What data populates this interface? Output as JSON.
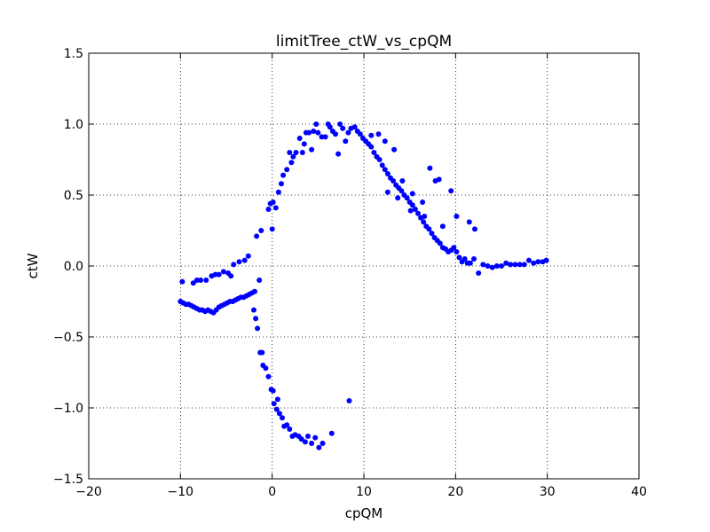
{
  "chart_data": {
    "type": "scatter",
    "title": "limitTree_ctW_vs_cpQM",
    "xlabel": "cpQM",
    "ylabel": "ctW",
    "xlim": [
      -20,
      40
    ],
    "ylim": [
      -1.5,
      1.5
    ],
    "xticks": [
      -20,
      -10,
      0,
      10,
      20,
      30,
      40
    ],
    "yticks": [
      -1.5,
      -1.0,
      -0.5,
      0.0,
      0.5,
      1.0,
      1.5
    ],
    "xtick_labels": [
      "−20",
      "−10",
      "0",
      "10",
      "20",
      "30",
      "40"
    ],
    "ytick_labels": [
      "−1.5",
      "−1.0",
      "−0.5",
      "0.0",
      "0.5",
      "1.0",
      "1.5"
    ],
    "grid": true,
    "marker_color": "#0000ff",
    "series": [
      {
        "points": [
          [
            -10,
            -0.25
          ],
          [
            -9.7,
            -0.26
          ],
          [
            -9.4,
            -0.27
          ],
          [
            -9.1,
            -0.27
          ],
          [
            -8.8,
            -0.28
          ],
          [
            -8.5,
            -0.29
          ],
          [
            -8.2,
            -0.3
          ],
          [
            -7.9,
            -0.31
          ],
          [
            -7.6,
            -0.31
          ],
          [
            -7.3,
            -0.32
          ],
          [
            -7,
            -0.31
          ],
          [
            -6.7,
            -0.32
          ],
          [
            -6.4,
            -0.33
          ],
          [
            -6.1,
            -0.31
          ],
          [
            -5.8,
            -0.29
          ],
          [
            -5.5,
            -0.28
          ],
          [
            -5.2,
            -0.27
          ],
          [
            -4.9,
            -0.26
          ],
          [
            -4.6,
            -0.25
          ],
          [
            -4.3,
            -0.25
          ],
          [
            -4,
            -0.24
          ],
          [
            -3.7,
            -0.23
          ],
          [
            -3.4,
            -0.22
          ],
          [
            -3.1,
            -0.22
          ],
          [
            -2.8,
            -0.21
          ],
          [
            -2.5,
            -0.2
          ],
          [
            -2.2,
            -0.19
          ],
          [
            -1.9,
            -0.18
          ],
          [
            -9.8,
            -0.11
          ],
          [
            -8.6,
            -0.12
          ],
          [
            -8.2,
            -0.1
          ],
          [
            -7.8,
            -0.1
          ],
          [
            -7.2,
            -0.1
          ],
          [
            -6.6,
            -0.07
          ],
          [
            -6.2,
            -0.06
          ],
          [
            -5.8,
            -0.06
          ],
          [
            -5.3,
            -0.04
          ],
          [
            -4.8,
            -0.05
          ],
          [
            -4.5,
            -0.07
          ],
          [
            -4.2,
            0.01
          ],
          [
            -3.6,
            0.03
          ],
          [
            -3,
            0.04
          ],
          [
            -2.6,
            0.07
          ],
          [
            -1.7,
            0.21
          ],
          [
            -1.2,
            0.25
          ],
          [
            -0.4,
            0.4
          ],
          [
            -0.2,
            0.44
          ],
          [
            0.1,
            0.45
          ],
          [
            0.4,
            0.41
          ],
          [
            0.7,
            0.52
          ],
          [
            1,
            0.58
          ],
          [
            1.2,
            0.64
          ],
          [
            1.6,
            0.68
          ],
          [
            1.9,
            0.8
          ],
          [
            2.1,
            0.73
          ],
          [
            2.3,
            0.77
          ],
          [
            2.6,
            0.8
          ],
          [
            3,
            0.9
          ],
          [
            3.3,
            0.8
          ],
          [
            3.5,
            0.86
          ],
          [
            3.7,
            0.94
          ],
          [
            4,
            0.94
          ],
          [
            4.3,
            0.82
          ],
          [
            4.5,
            0.95
          ],
          [
            4.8,
            1
          ],
          [
            5,
            0.94
          ],
          [
            5.4,
            0.91
          ],
          [
            5.8,
            0.91
          ],
          [
            6.1,
            1
          ],
          [
            6.3,
            0.98
          ],
          [
            6.6,
            0.95
          ],
          [
            6.9,
            0.93
          ],
          [
            7.2,
            0.79
          ],
          [
            7.4,
            1
          ],
          [
            7.7,
            0.97
          ],
          [
            8,
            0.88
          ],
          [
            8.3,
            0.94
          ],
          [
            8.6,
            0.97
          ],
          [
            9,
            0.98
          ],
          [
            9.3,
            0.95
          ],
          [
            9.6,
            0.93
          ],
          [
            9.9,
            0.9
          ],
          [
            10.2,
            0.88
          ],
          [
            10.5,
            0.86
          ],
          [
            10.8,
            0.84
          ],
          [
            11.1,
            0.8
          ],
          [
            11.4,
            0.77
          ],
          [
            11.7,
            0.75
          ],
          [
            12,
            0.71
          ],
          [
            12.3,
            0.68
          ],
          [
            12.6,
            0.65
          ],
          [
            12.9,
            0.62
          ],
          [
            13.2,
            0.6
          ],
          [
            13.5,
            0.57
          ],
          [
            13.8,
            0.55
          ],
          [
            14.1,
            0.53
          ],
          [
            14.4,
            0.5
          ],
          [
            14.7,
            0.48
          ],
          [
            15,
            0.45
          ],
          [
            15.3,
            0.43
          ],
          [
            15.6,
            0.4
          ],
          [
            15.9,
            0.37
          ],
          [
            16.2,
            0.34
          ],
          [
            16.5,
            0.31
          ],
          [
            16.8,
            0.28
          ],
          [
            17.1,
            0.26
          ],
          [
            17.4,
            0.23
          ],
          [
            17.7,
            0.2
          ],
          [
            18,
            0.18
          ],
          [
            18.3,
            0.16
          ],
          [
            18.6,
            0.13
          ],
          [
            18.9,
            0.12
          ],
          [
            19.2,
            0.1
          ],
          [
            19.5,
            0.11
          ],
          [
            19.8,
            0.13
          ],
          [
            20.1,
            0.1
          ],
          [
            20.4,
            0.06
          ],
          [
            20.7,
            0.03
          ],
          [
            21,
            0.05
          ],
          [
            21.3,
            0.02
          ],
          [
            21.6,
            0.02
          ],
          [
            22,
            0.05
          ],
          [
            22.5,
            -0.05
          ],
          [
            23,
            0.01
          ],
          [
            23.5,
            0
          ],
          [
            24,
            -0.01
          ],
          [
            24.5,
            0
          ],
          [
            25,
            0
          ],
          [
            25.5,
            0.02
          ],
          [
            26,
            0.01
          ],
          [
            26.5,
            0.01
          ],
          [
            27,
            0.01
          ],
          [
            27.5,
            0.01
          ],
          [
            28,
            0.04
          ],
          [
            28.5,
            0.02
          ],
          [
            29,
            0.03
          ],
          [
            29.5,
            0.03
          ],
          [
            29.9,
            0.04
          ],
          [
            10.8,
            0.92
          ],
          [
            11.6,
            0.93
          ],
          [
            12.3,
            0.88
          ],
          [
            13.3,
            0.82
          ],
          [
            14.2,
            0.6
          ],
          [
            15.3,
            0.51
          ],
          [
            16.4,
            0.45
          ],
          [
            17.2,
            0.69
          ],
          [
            17.8,
            0.6
          ],
          [
            18.2,
            0.61
          ],
          [
            19.5,
            0.53
          ],
          [
            20.1,
            0.35
          ],
          [
            21.5,
            0.31
          ],
          [
            22.1,
            0.26
          ],
          [
            12.6,
            0.52
          ],
          [
            13.7,
            0.48
          ],
          [
            15.1,
            0.39
          ],
          [
            16.6,
            0.35
          ],
          [
            18.6,
            0.28
          ],
          [
            -2,
            -0.31
          ],
          [
            -1.8,
            -0.37
          ],
          [
            -1.6,
            -0.44
          ],
          [
            -1.3,
            -0.61
          ],
          [
            -1.1,
            -0.61
          ],
          [
            -1,
            -0.7
          ],
          [
            -0.7,
            -0.72
          ],
          [
            -0.4,
            -0.78
          ],
          [
            -0.1,
            -0.87
          ],
          [
            0.2,
            -0.97
          ],
          [
            0.5,
            -1.01
          ],
          [
            0.8,
            -1.04
          ],
          [
            1.1,
            -1.07
          ],
          [
            1.3,
            -1.13
          ],
          [
            1.6,
            -1.12
          ],
          [
            1.9,
            -1.15
          ],
          [
            2.2,
            -1.2
          ],
          [
            2.5,
            -1.19
          ],
          [
            2.9,
            -1.2
          ],
          [
            3.2,
            -1.22
          ],
          [
            3.6,
            -1.24
          ],
          [
            3.9,
            -1.2
          ],
          [
            4.3,
            -1.25
          ],
          [
            4.7,
            -1.21
          ],
          [
            5.1,
            -1.28
          ],
          [
            5.5,
            -1.25
          ],
          [
            6.5,
            -1.18
          ],
          [
            8.4,
            -0.95
          ],
          [
            -1.4,
            -0.1
          ],
          [
            0,
            0.26
          ],
          [
            0.1,
            -0.88
          ],
          [
            0.6,
            -0.94
          ]
        ]
      }
    ]
  }
}
